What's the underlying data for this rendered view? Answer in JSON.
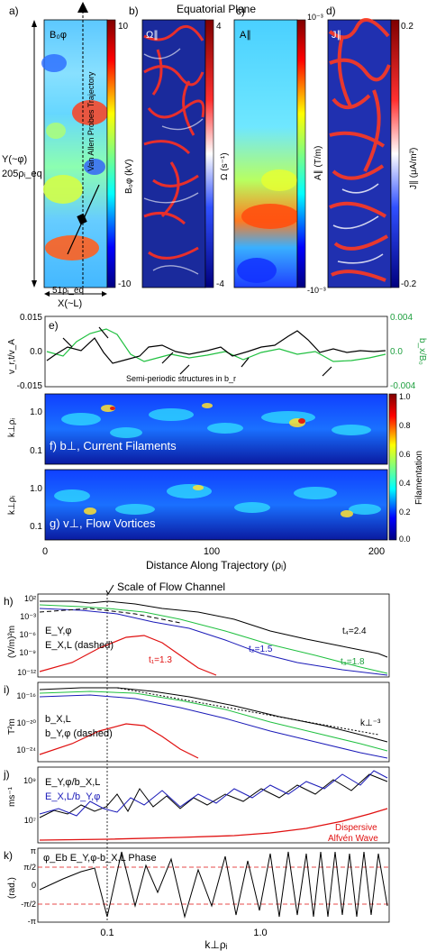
{
  "figure": {
    "top_title": "Equatorial Plane",
    "panel_letters": [
      "a)",
      "b)",
      "c)",
      "d)",
      "e)",
      "f)",
      "g)",
      "h)",
      "i)",
      "j)",
      "k)"
    ],
    "maps": {
      "a": {
        "field_label": "B₀φ",
        "cbar_label": "B₀φ (kV)",
        "cbar_max": "10",
        "cbar_min": "-10",
        "trajectory_label": "Van Allen Probes Trajectory",
        "y_axis_label": "Y(~φ)",
        "y_extent": "205ρᵢ_eq",
        "x_extent": "51ρᵢ_eq",
        "x_axis_label": "X(~L)"
      },
      "b": {
        "field_label": "Ω∥",
        "cbar_label": "Ω (s⁻¹)",
        "cbar_max": "4",
        "cbar_min": "-4"
      },
      "c": {
        "field_label": "A∥",
        "cbar_label": "A∥ (T/m)",
        "cbar_max": "10⁻³",
        "cbar_min": "-10⁻³"
      },
      "d": {
        "field_label": "J∥",
        "cbar_label": "J∥ (μA/m²)",
        "cbar_max": "0.2",
        "cbar_min": "-0.2"
      }
    },
    "panel_e": {
      "left_ylabel": "v_r,t/v_A",
      "right_ylabel": "b_x/B₀",
      "left_ticks": [
        "0.015",
        "0.0",
        "-0.015"
      ],
      "right_ticks": [
        "0.004",
        "0.0",
        "-0.004"
      ],
      "annotation": "Semi-periodic structures in b_r"
    },
    "panel_f": {
      "label": "f) b⊥, Current Filaments",
      "ylabel": "k⊥ρᵢ",
      "yticks": [
        "1.0",
        "0.1"
      ]
    },
    "panel_g": {
      "label": "g) v⊥, Flow Vortices",
      "ylabel": "k⊥ρᵢ",
      "yticks": [
        "1.0",
        "0.1"
      ]
    },
    "filament_cbar": {
      "label": "Filamentation",
      "ticks": [
        "1.0",
        "0.8",
        "0.6",
        "0.4",
        "0.2",
        "0.0"
      ]
    },
    "wavelet_xaxis": {
      "ticks": [
        "0",
        "100",
        "200"
      ],
      "label": "Distance Along Trajectory (ρᵢ)"
    },
    "flow_channel_label": "Scale of Flow Channel",
    "panel_h": {
      "ylabel": "(V/m)²m",
      "yticks": [
        "10²",
        "10⁻³",
        "10⁻⁶",
        "10⁻⁹",
        "10⁻¹²"
      ],
      "legend_solid": "E_Y,φ",
      "legend_dashed": "E_X,L (dashed)",
      "times": [
        "t₁=1.3",
        "t₂=1.5",
        "t₃=1.8",
        "t₄=2.4"
      ]
    },
    "panel_i": {
      "ylabel": "T²m",
      "yticks": [
        "10⁻¹⁶",
        "10⁻²⁰",
        "10⁻²⁴"
      ],
      "legend_solid": "b_X,L",
      "legend_dashed": "b_Y,φ (dashed)",
      "slope_label": "k⊥⁻³"
    },
    "panel_j": {
      "ylabel": "ms⁻¹",
      "yticks": [
        "10⁹",
        "10⁷"
      ],
      "legend_1": "E_Y,φ/b_X,L",
      "legend_2": "E_X,L/b_Y,φ",
      "model_label_1": "Dispersive",
      "model_label_2": "Alfvén Wave"
    },
    "panel_k": {
      "title": "φ_Eb E_Y,φ-b_X,L Phase",
      "ylabel": "(rad.)",
      "yticks": [
        "π",
        "π/2",
        "0",
        "-π/2",
        "-π"
      ]
    },
    "spectra_xaxis": {
      "ticks": [
        "0.1",
        "1.0"
      ],
      "label": "k⊥ρᵢ"
    },
    "colors": {
      "black_line": "#000000",
      "green_line": "#20c040",
      "blue_line": "#1a1ab8",
      "red_line": "#e01010",
      "jet_low": "#00007f",
      "jet_high": "#7f0000"
    }
  }
}
